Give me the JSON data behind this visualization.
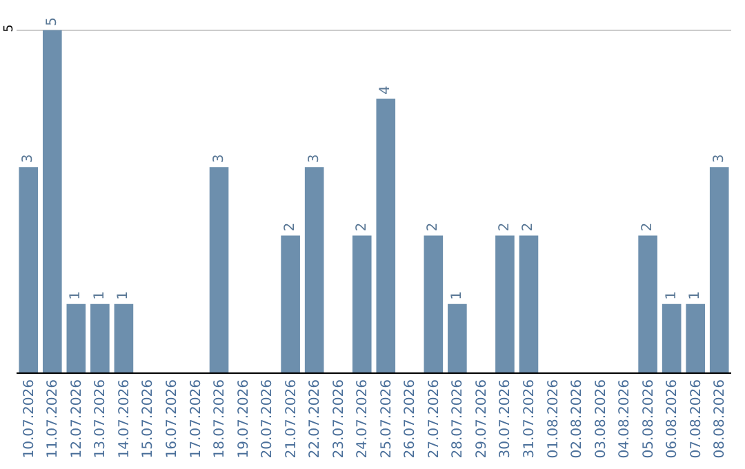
{
  "chart_data": {
    "type": "bar",
    "categories": [
      "10.07.2026",
      "11.07.2026",
      "12.07.2026",
      "13.07.2026",
      "14.07.2026",
      "15.07.2026",
      "16.07.2026",
      "17.07.2026",
      "18.07.2026",
      "19.07.2026",
      "20.07.2026",
      "21.07.2026",
      "22.07.2026",
      "23.07.2026",
      "24.07.2026",
      "25.07.2026",
      "26.07.2026",
      "27.07.2026",
      "28.07.2026",
      "29.07.2026",
      "30.07.2026",
      "31.07.2026",
      "01.08.2026",
      "02.08.2026",
      "03.08.2026",
      "04.08.2026",
      "05.08.2026",
      "06.08.2026",
      "07.08.2026",
      "08.08.2026"
    ],
    "values": [
      3,
      5,
      1,
      1,
      1,
      0,
      0,
      0,
      3,
      0,
      0,
      2,
      3,
      0,
      2,
      4,
      0,
      2,
      1,
      0,
      2,
      2,
      0,
      0,
      0,
      0,
      2,
      1,
      1,
      3
    ],
    "value_labels": [
      "3",
      "5",
      "1",
      "1",
      "1",
      null,
      null,
      null,
      "3",
      null,
      null,
      "2",
      "3",
      null,
      "2",
      "4",
      null,
      "2",
      "1",
      null,
      "2",
      "2",
      null,
      null,
      null,
      null,
      "2",
      "1",
      "1",
      "3"
    ],
    "color": "#6d8fad",
    "ylim": [
      0,
      5.4
    ],
    "yticks": [
      5
    ],
    "grid": "y"
  }
}
